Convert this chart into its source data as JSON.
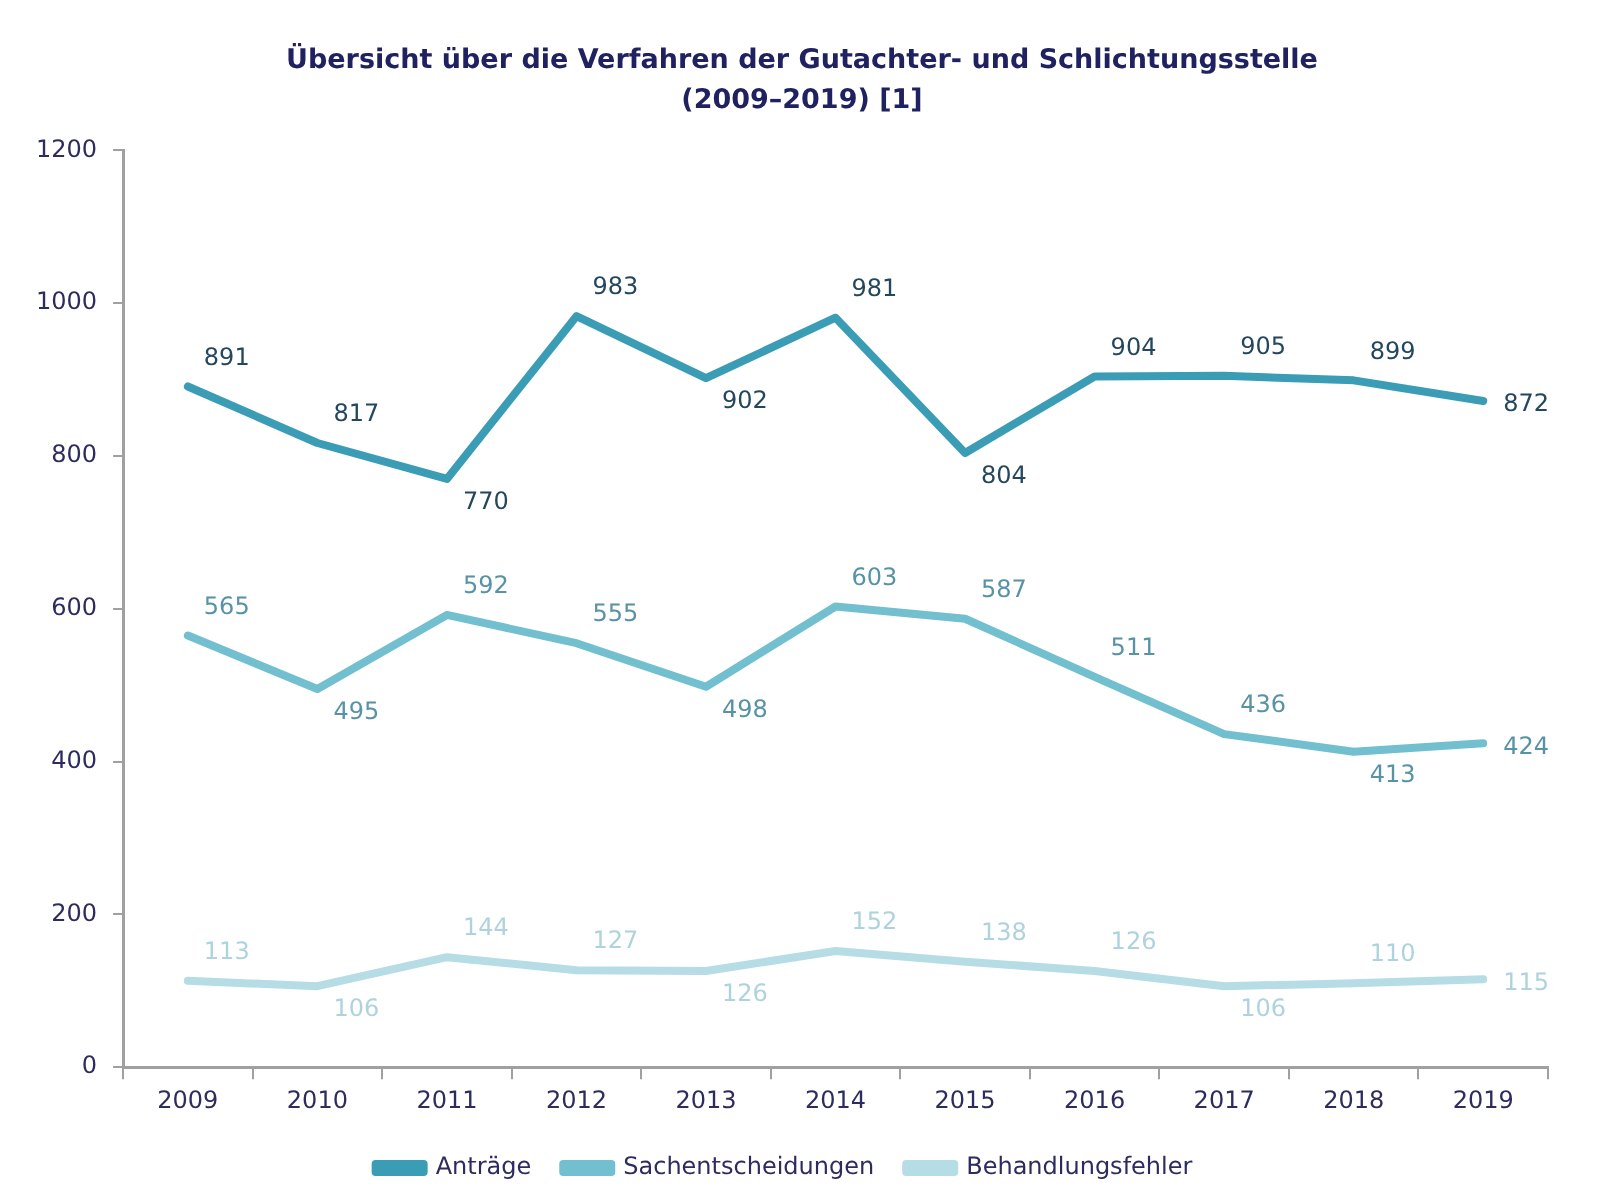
{
  "chart_data": {
    "type": "line",
    "title": "Übersicht über die Verfahren der Gutachter- und Schlichtungsstelle (2009–2019) [1]",
    "categories": [
      "2009",
      "2010",
      "2011",
      "2012",
      "2013",
      "2014",
      "2015",
      "2016",
      "2017",
      "2018",
      "2019"
    ],
    "series": [
      {
        "name": "Anträge",
        "color": "#3b9cb6",
        "values": [
          891,
          817,
          770,
          983,
          902,
          981,
          804,
          904,
          905,
          899,
          872
        ]
      },
      {
        "name": "Sachentscheidungen",
        "color": "#72bfd0",
        "values": [
          565,
          495,
          592,
          555,
          498,
          603,
          587,
          511,
          436,
          413,
          424
        ]
      },
      {
        "name": "Behandlungsfehler",
        "color": "#b6dce5",
        "values": [
          113,
          106,
          144,
          127,
          126,
          152,
          138,
          126,
          106,
          110,
          115
        ]
      }
    ],
    "ylim": [
      0,
      1200
    ],
    "yticks": [
      0,
      200,
      400,
      600,
      800,
      1000,
      1200
    ],
    "grid": false,
    "legend": "bottom",
    "marker": "none",
    "line_style": "solid",
    "data_labels": true
  }
}
